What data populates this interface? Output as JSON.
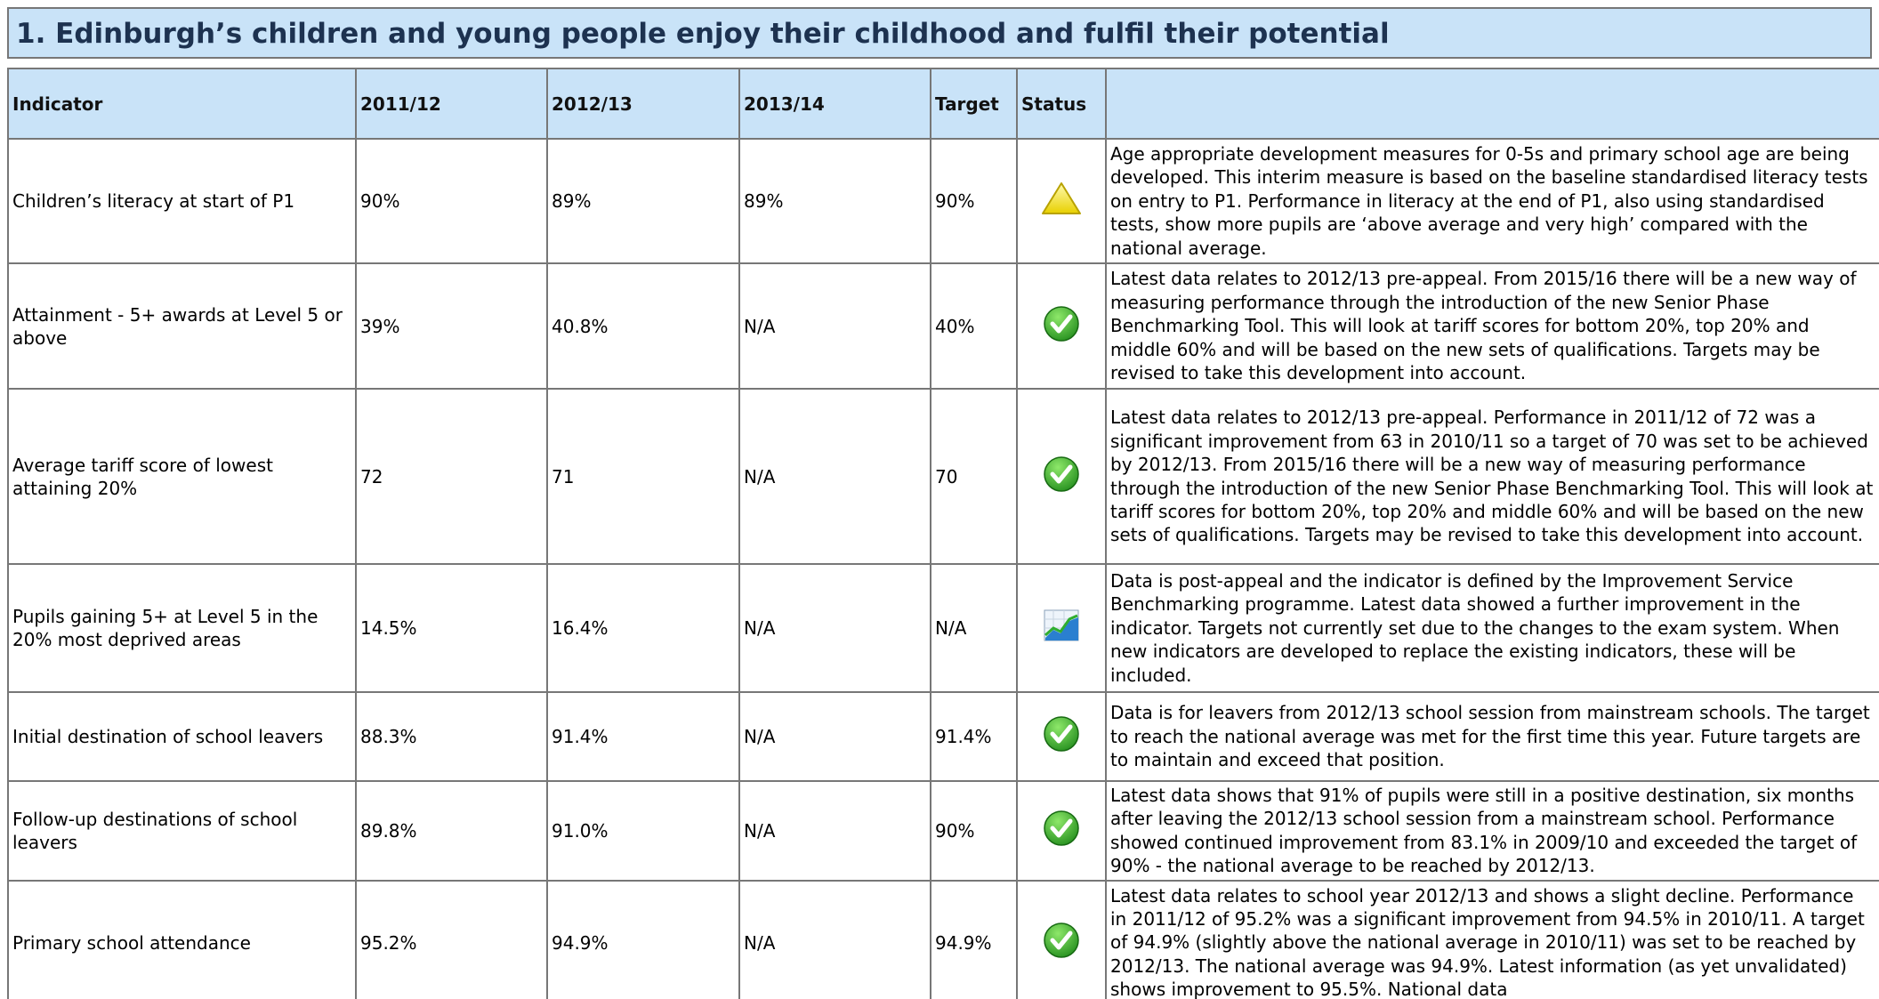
{
  "title": "1. Edinburgh’s children and young people enjoy their childhood and fulfil their potential",
  "table": {
    "header": [
      "Indicator",
      "2011/12",
      "2012/13",
      "2013/14",
      "Target",
      "Status",
      ""
    ],
    "rows": [
      [
        "Children’s literacy at start of P1",
        "90%",
        "89%",
        "89%",
        "90%",
        "Age appropriate development measures for 0-5s and primary school age are being developed. This interim measure is based on the baseline standardised literacy tests on entry to P1. Performance in literacy at the end of P1, also using standardised tests, show more pupils are ‘above average and very high’ compared with the national average."
      ],
      [
        "Attainment - 5+ awards at Level 5 or above",
        "39%",
        "40.8%",
        "N/A",
        "40%",
        "Latest data relates to 2012/13 pre-appeal. From 2015/16 there will be a new way of measuring performance through the introduction of the new Senior Phase Benchmarking Tool. This will look at tariff scores for bottom 20%, top 20% and middle 60% and will be based on the new sets of qualifications. Targets may be revised to take this development into account."
      ],
      [
        "Average tariff score of lowest attaining 20%",
        "72",
        "71",
        "N/A",
        "70",
        "Latest data relates to 2012/13 pre-appeal. Performance in 2011/12 of 72 was a significant improvement from 63 in 2010/11 so a target of 70 was set to be achieved by 2012/13. From 2015/16 there will be a new way of measuring performance through the introduction of the new Senior Phase Benchmarking Tool. This will look at tariff scores for bottom 20%, top 20% and middle 60% and will be based on the new sets of qualifications. Targets may be revised to take this development into account."
      ],
      [
        "Pupils gaining 5+ at Level 5 in the 20% most deprived areas",
        "14.5%",
        "16.4%",
        "N/A",
        "N/A",
        "Data is post-appeal and the indicator is defined by the Improvement Service Benchmarking programme. Latest data showed a further improvement in the indicator. Targets not currently set due to the changes to the exam system. When new indicators are developed to replace the existing indicators, these will be included."
      ],
      [
        "Initial destination of school leavers",
        "88.3%",
        "91.4%",
        "N/A",
        "91.4%",
        "Data is for leavers from 2012/13 school session from mainstream schools. The target to reach the national average was met for the first time this year. Future targets are to maintain and exceed that position."
      ],
      [
        "Follow-up destinations of school leavers",
        "89.8%",
        "91.0%",
        "N/A",
        "90%",
        "Latest data shows that 91% of pupils were still in a positive destination, six months after leaving the 2012/13 school session from a mainstream school. Performance showed continued improvement from 83.1% in 2009/10 and exceeded the target of 90% - the national average to be reached by 2012/13."
      ],
      [
        "Primary school attendance",
        "95.2%",
        "94.9%",
        "N/A",
        "94.9%",
        "Latest data relates to school year 2012/13 and shows a slight decline. Performance in 2011/12 of 95.2% was a significant improvement from 94.5% in 2010/11. A target of 94.9% (slightly above the national average in 2010/11) was set to be reached by 2012/13. The national average was 94.9%. Latest information (as yet unvalidated) shows improvement to 95.5%. National data"
      ]
    ]
  }
}
